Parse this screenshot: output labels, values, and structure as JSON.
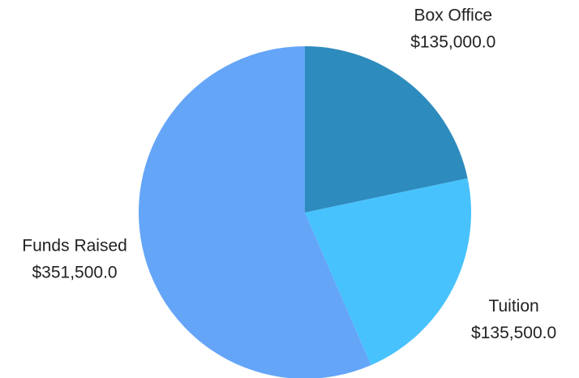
{
  "chart_data": {
    "type": "pie",
    "categories": [
      "Box Office",
      "Tuition",
      "Funds Raised"
    ],
    "values": [
      135000,
      135500,
      351500
    ],
    "value_labels": [
      "$135,000.0",
      "$135,500.0",
      "$351,500.0"
    ],
    "colors": [
      "#2e8bbd",
      "#47c2fd",
      "#64a5f8"
    ]
  }
}
